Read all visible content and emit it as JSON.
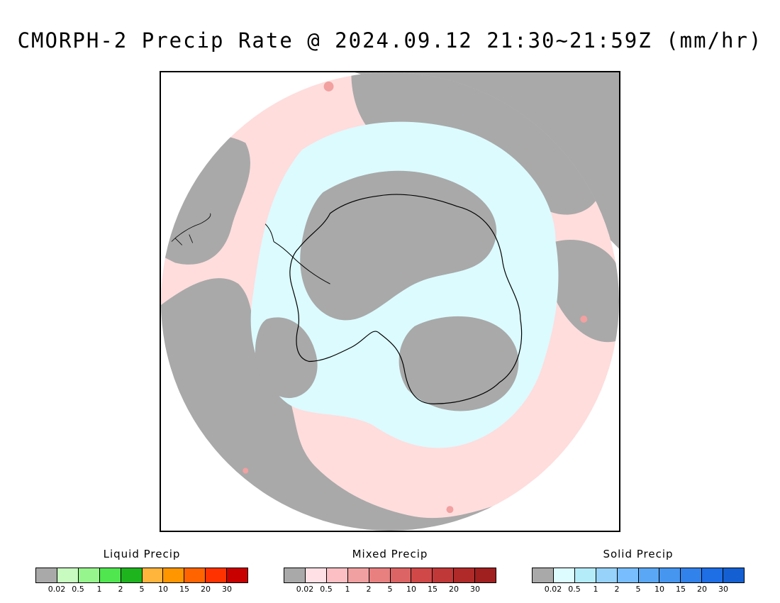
{
  "title": "CMORPH-2 Precip Rate @ 2024.09.12 21:30~21:59Z (mm/hr)",
  "map": {
    "projection": "south-polar-stereographic",
    "base_color": "#a9a9a9",
    "region_colors": {
      "liquid_light": "#ffdddd",
      "solid_light": "#dcfbff",
      "mixed_spot": "#f2a0a0"
    }
  },
  "legends": [
    {
      "id": "liquid",
      "label": "Liquid Precip",
      "colors": [
        "#a9a9a9",
        "#c8fbc0",
        "#96f58c",
        "#50e650",
        "#1eb41e",
        "#ffb43c",
        "#ff9600",
        "#ff6400",
        "#ff3200",
        "#c80000"
      ],
      "ticks": [
        "0.02",
        "0.5",
        "1",
        "2",
        "5",
        "10",
        "15",
        "20",
        "30"
      ]
    },
    {
      "id": "mixed",
      "label": "Mixed Precip",
      "colors": [
        "#a9a9a9",
        "#ffe0e4",
        "#fcc0c4",
        "#f0a0a0",
        "#e88080",
        "#dc6464",
        "#d04848",
        "#c03838",
        "#b02a2a",
        "#a02020"
      ],
      "ticks": [
        "0.02",
        "0.5",
        "1",
        "2",
        "5",
        "10",
        "15",
        "20",
        "30"
      ]
    },
    {
      "id": "solid",
      "label": "Solid Precip",
      "colors": [
        "#a9a9a9",
        "#dcfcff",
        "#b4ecfa",
        "#96d2fa",
        "#78beff",
        "#5aa8f5",
        "#4696f0",
        "#3282eb",
        "#1e6ee6",
        "#1460d2"
      ],
      "ticks": [
        "0.02",
        "0.5",
        "1",
        "2",
        "5",
        "10",
        "15",
        "20",
        "30"
      ]
    }
  ]
}
